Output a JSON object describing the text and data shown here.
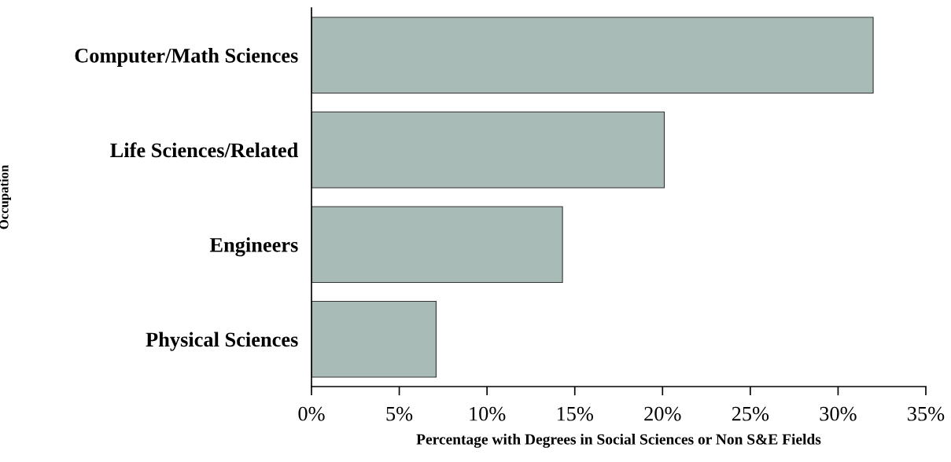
{
  "chart_data": {
    "type": "bar",
    "orientation": "horizontal",
    "categories": [
      "Computer/Math Sciences",
      "Life Sciences/Related",
      "Engineers",
      "Physical Sciences"
    ],
    "values": [
      32.0,
      20.1,
      14.3,
      7.1
    ],
    "color": "#a9bbb7",
    "xlabel": "Percentage with Degrees in Social Sciences or Non S&E Fields",
    "ylabel": "Occupation",
    "xlim": [
      0,
      35
    ],
    "xticks": [
      {
        "value": 0,
        "label": "0%"
      },
      {
        "value": 5,
        "label": "5%"
      },
      {
        "value": 10,
        "label": "10%"
      },
      {
        "value": 15,
        "label": "15%"
      },
      {
        "value": 20,
        "label": "20%"
      },
      {
        "value": 25,
        "label": "25%"
      },
      {
        "value": 30,
        "label": "30%"
      },
      {
        "value": 35,
        "label": "35%"
      }
    ],
    "grid": false,
    "legend": false
  }
}
